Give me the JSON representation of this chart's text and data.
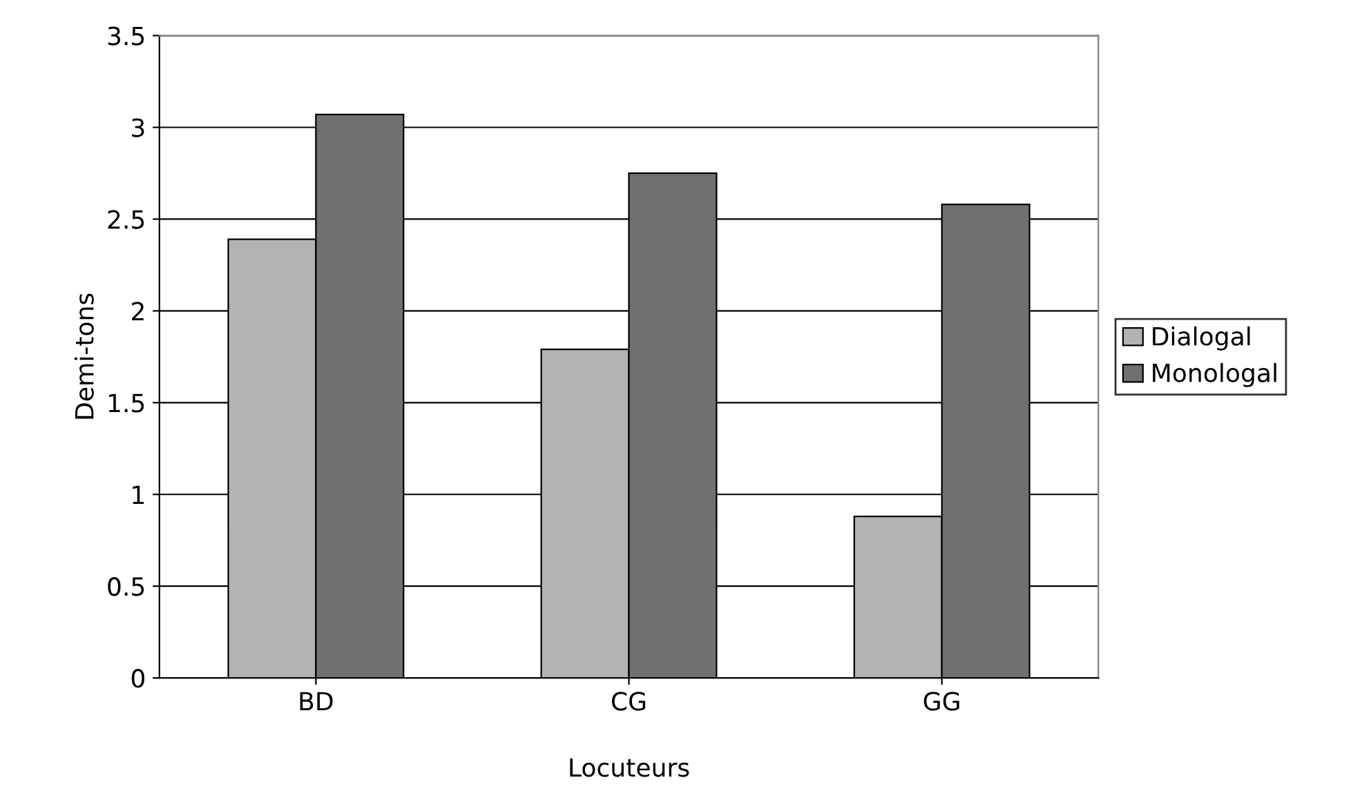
{
  "chart_data": {
    "type": "bar",
    "xlabel": "Locuteurs",
    "ylabel": "Demi-tons",
    "categories": [
      "BD",
      "CG",
      "GG"
    ],
    "series": [
      {
        "name": "Dialogal",
        "color": "#b3b3b3",
        "values": [
          2.39,
          1.79,
          0.88
        ]
      },
      {
        "name": "Monologal",
        "color": "#707070",
        "values": [
          3.07,
          2.75,
          2.58
        ]
      }
    ],
    "ylim": [
      0,
      3.5
    ],
    "yticks": [
      0,
      0.5,
      1,
      1.5,
      2,
      2.5,
      3,
      3.5
    ],
    "grid": "y",
    "legend": "right"
  }
}
